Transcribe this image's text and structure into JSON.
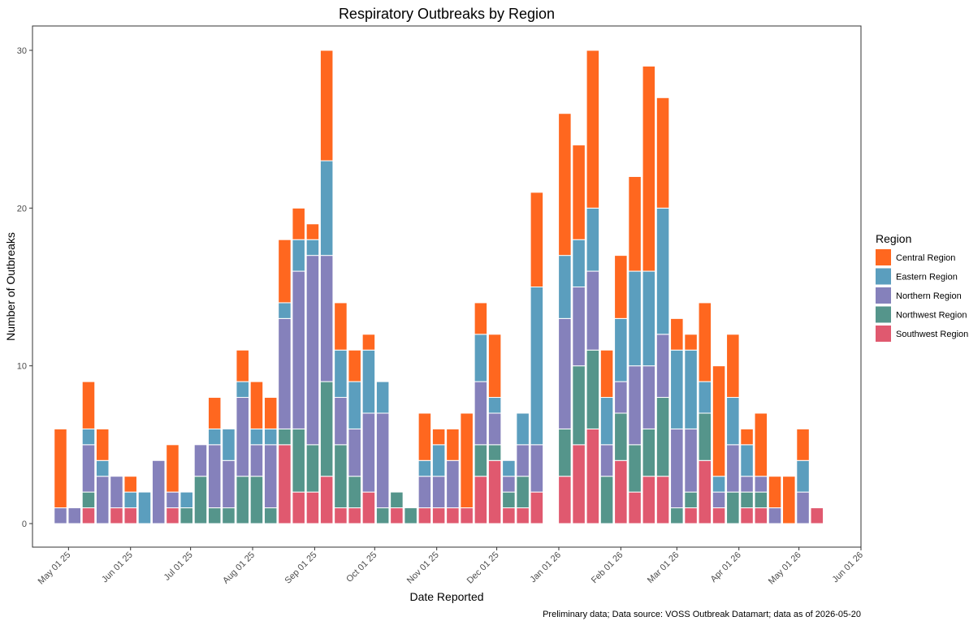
{
  "chart_data": {
    "type": "bar",
    "stacked": true,
    "title": "Respiratory Outbreaks by Region",
    "xlabel": "Date Reported",
    "ylabel": "Number of Outbreaks",
    "caption": "Preliminary data; Data source: VOSS Outbreak Datamart; data as of 2026-05-20",
    "ylim": [
      0,
      31
    ],
    "yticks": [
      0,
      10,
      20,
      30
    ],
    "xlim": [
      "2025-04-13",
      "2026-06-01"
    ],
    "xticks": [
      {
        "date": "2025-05-01",
        "label": "May 01 25"
      },
      {
        "date": "2025-06-01",
        "label": "Jun 01 25"
      },
      {
        "date": "2025-07-01",
        "label": "Jul 01 25"
      },
      {
        "date": "2025-08-01",
        "label": "Aug 01 25"
      },
      {
        "date": "2025-09-01",
        "label": "Sep 01 25"
      },
      {
        "date": "2025-10-01",
        "label": "Oct 01 25"
      },
      {
        "date": "2025-11-01",
        "label": "Nov 01 25"
      },
      {
        "date": "2025-12-01",
        "label": "Dec 01 25"
      },
      {
        "date": "2026-01-01",
        "label": "Jan 01 26"
      },
      {
        "date": "2026-02-01",
        "label": "Feb 01 26"
      },
      {
        "date": "2026-03-01",
        "label": "Mar 01 26"
      },
      {
        "date": "2026-04-01",
        "label": "Apr 01 26"
      },
      {
        "date": "2026-05-01",
        "label": "May 01 26"
      },
      {
        "date": "2026-06-01",
        "label": "Jun 01 26"
      }
    ],
    "legend": {
      "title": "Region",
      "position": "right"
    },
    "grid": false,
    "series": [
      {
        "name": "Central Region",
        "color": "#FF671F"
      },
      {
        "name": "Eastern Region",
        "color": "#5B9EBE"
      },
      {
        "name": "Northern Region",
        "color": "#8581BB"
      },
      {
        "name": "Northwest Region",
        "color": "#55958B"
      },
      {
        "name": "Southwest Region",
        "color": "#E0596F"
      }
    ],
    "weeks": [
      "2025-04-27",
      "2025-05-04",
      "2025-05-11",
      "2025-05-18",
      "2025-05-25",
      "2025-06-01",
      "2025-06-08",
      "2025-06-15",
      "2025-06-22",
      "2025-06-29",
      "2025-07-06",
      "2025-07-13",
      "2025-07-20",
      "2025-07-27",
      "2025-08-03",
      "2025-08-10",
      "2025-08-17",
      "2025-08-24",
      "2025-08-31",
      "2025-09-07",
      "2025-09-14",
      "2025-09-21",
      "2025-09-28",
      "2025-10-05",
      "2025-10-12",
      "2025-10-19",
      "2025-10-26",
      "2025-11-02",
      "2025-11-09",
      "2025-11-16",
      "2025-11-23",
      "2025-11-30",
      "2025-12-07",
      "2025-12-14",
      "2025-12-21",
      "2025-12-28",
      "2026-01-04",
      "2026-01-11",
      "2026-01-18",
      "2026-01-25",
      "2026-02-01",
      "2026-02-08",
      "2026-02-15",
      "2026-02-22",
      "2026-03-01",
      "2026-03-08",
      "2026-03-15",
      "2026-03-22",
      "2026-03-29",
      "2026-04-05",
      "2026-04-12",
      "2026-04-19",
      "2026-04-26",
      "2026-05-03",
      "2026-05-10"
    ],
    "values": {
      "Southwest Region": [
        0,
        0,
        1,
        0,
        1,
        1,
        0,
        0,
        1,
        0,
        0,
        0,
        0,
        0,
        0,
        0,
        5,
        2,
        2,
        3,
        1,
        1,
        2,
        0,
        1,
        0,
        1,
        1,
        1,
        1,
        3,
        4,
        1,
        1,
        2,
        0,
        3,
        5,
        6,
        0,
        4,
        2,
        3,
        3,
        0,
        1,
        4,
        1,
        0,
        1,
        1,
        0,
        0,
        0,
        1
      ],
      "Northwest Region": [
        0,
        0,
        1,
        0,
        0,
        0,
        0,
        0,
        0,
        1,
        3,
        1,
        1,
        3,
        3,
        1,
        1,
        4,
        3,
        6,
        4,
        2,
        0,
        1,
        1,
        1,
        0,
        0,
        0,
        0,
        2,
        1,
        1,
        2,
        0,
        0,
        3,
        5,
        5,
        3,
        3,
        3,
        3,
        5,
        1,
        1,
        3,
        0,
        2,
        1,
        1,
        0,
        0,
        0,
        0
      ],
      "Northern Region": [
        1,
        1,
        3,
        3,
        2,
        0,
        0,
        4,
        1,
        0,
        2,
        4,
        3,
        5,
        2,
        4,
        7,
        10,
        12,
        8,
        3,
        3,
        5,
        6,
        0,
        0,
        2,
        2,
        3,
        0,
        4,
        2,
        1,
        2,
        3,
        0,
        7,
        5,
        5,
        2,
        2,
        5,
        4,
        4,
        5,
        4,
        0,
        1,
        3,
        1,
        1,
        1,
        0,
        2,
        0
      ],
      "Eastern Region": [
        0,
        0,
        1,
        1,
        0,
        1,
        2,
        0,
        0,
        1,
        0,
        1,
        2,
        1,
        1,
        1,
        1,
        2,
        1,
        6,
        3,
        3,
        4,
        2,
        0,
        0,
        1,
        2,
        0,
        0,
        3,
        1,
        1,
        2,
        10,
        0,
        4,
        3,
        4,
        3,
        4,
        6,
        6,
        8,
        5,
        5,
        2,
        1,
        3,
        2,
        0,
        0,
        0,
        2,
        0
      ],
      "Central Region": [
        5,
        0,
        3,
        2,
        0,
        1,
        0,
        0,
        3,
        0,
        0,
        2,
        0,
        2,
        3,
        2,
        4,
        2,
        1,
        7,
        3,
        2,
        1,
        0,
        0,
        0,
        3,
        1,
        2,
        6,
        2,
        4,
        0,
        0,
        6,
        0,
        9,
        6,
        10,
        3,
        4,
        6,
        13,
        7,
        2,
        1,
        5,
        7,
        4,
        1,
        4,
        2,
        3,
        2,
        0
      ]
    }
  }
}
